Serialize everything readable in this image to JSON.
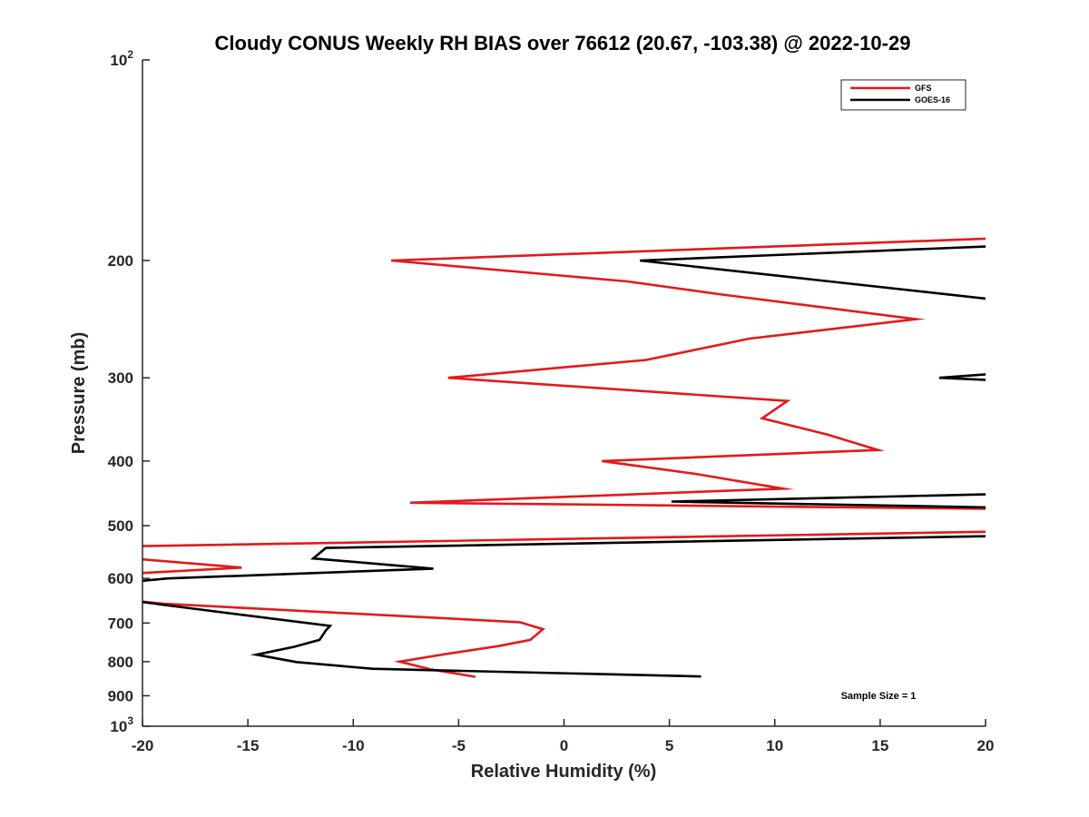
{
  "chart_data": {
    "type": "line",
    "title": "Cloudy CONUS Weekly RH BIAS over 76612 (20.67, -103.38) @ 2022-10-29",
    "xlabel": "Relative Humidity (%)",
    "ylabel": "Pressure (mb)",
    "xlim": [
      -20,
      20
    ],
    "ylim": [
      100,
      1000
    ],
    "y_scale": "log",
    "y_reversed": true,
    "x_ticks": [
      -20,
      -15,
      -10,
      -5,
      0,
      5,
      10,
      15,
      20
    ],
    "x_tick_labels": [
      "-20",
      "-15",
      "-10",
      "-5",
      "0",
      "5",
      "10",
      "15",
      "20"
    ],
    "y_ticks": [
      100,
      200,
      300,
      400,
      500,
      600,
      700,
      800,
      900,
      1000
    ],
    "y_tick_labels": [
      {
        "base": "10",
        "exp": "2"
      },
      {
        "base": "200"
      },
      {
        "base": "300"
      },
      {
        "base": "400"
      },
      {
        "base": "500"
      },
      {
        "base": "600"
      },
      {
        "base": "700"
      },
      {
        "base": "800"
      },
      {
        "base": "900"
      },
      {
        "base": "10",
        "exp": "3"
      }
    ],
    "legend_position": "top-right",
    "annotation": "Sample Size = 1",
    "series": [
      {
        "name": "GFS",
        "color": "#e31a1c",
        "points": [
          [
            21,
            185
          ],
          [
            -8.2,
            200
          ],
          [
            3.0,
            215
          ],
          [
            7.5,
            225
          ],
          [
            16.7,
            245
          ],
          [
            8.8,
            262
          ],
          [
            3.9,
            282
          ],
          [
            -5.5,
            300
          ],
          [
            10.6,
            325
          ],
          [
            9.4,
            345
          ],
          [
            12.5,
            365
          ],
          [
            14.9,
            385
          ],
          [
            1.8,
            400
          ],
          [
            6.2,
            418
          ],
          [
            10.4,
            440
          ],
          [
            -7.3,
            462
          ],
          [
            21,
            472
          ],
          [
            21,
            510
          ],
          [
            -20.5,
            537
          ],
          [
            -20.5,
            560
          ],
          [
            -15.3,
            578
          ],
          [
            -20.5,
            590
          ],
          [
            -20.5,
            648
          ],
          [
            -19.0,
            655
          ],
          [
            -2.1,
            698
          ],
          [
            -1.0,
            715
          ],
          [
            -1.6,
            742
          ],
          [
            -3.1,
            758
          ],
          [
            -5.7,
            780
          ],
          [
            -7.8,
            800
          ],
          [
            -6.3,
            822
          ],
          [
            -4.2,
            843
          ]
        ]
      },
      {
        "name": "GOES-16",
        "color": "#000000",
        "points": [
          [
            21,
            190
          ],
          [
            3.6,
            200
          ],
          [
            21,
            230
          ],
          [
            null,
            null
          ],
          [
            21,
            295
          ],
          [
            17.8,
            300
          ],
          [
            21,
            303
          ],
          [
            null,
            null
          ],
          [
            21,
            448
          ],
          [
            5.1,
            460
          ],
          [
            21,
            470
          ],
          [
            null,
            null
          ],
          [
            21,
            518
          ],
          [
            -11.3,
            540
          ],
          [
            -11.9,
            560
          ],
          [
            -6.2,
            580
          ],
          [
            -18.8,
            600
          ],
          [
            -20.5,
            607
          ],
          [
            null,
            null
          ],
          [
            -20.5,
            648
          ],
          [
            -18.6,
            660
          ],
          [
            -11.1,
            707
          ],
          [
            -11.3,
            718
          ],
          [
            -11.6,
            742
          ],
          [
            -12.8,
            760
          ],
          [
            -14.6,
            781
          ],
          [
            -12.7,
            801
          ],
          [
            -9.1,
            820
          ],
          [
            6.5,
            842
          ]
        ]
      }
    ]
  }
}
